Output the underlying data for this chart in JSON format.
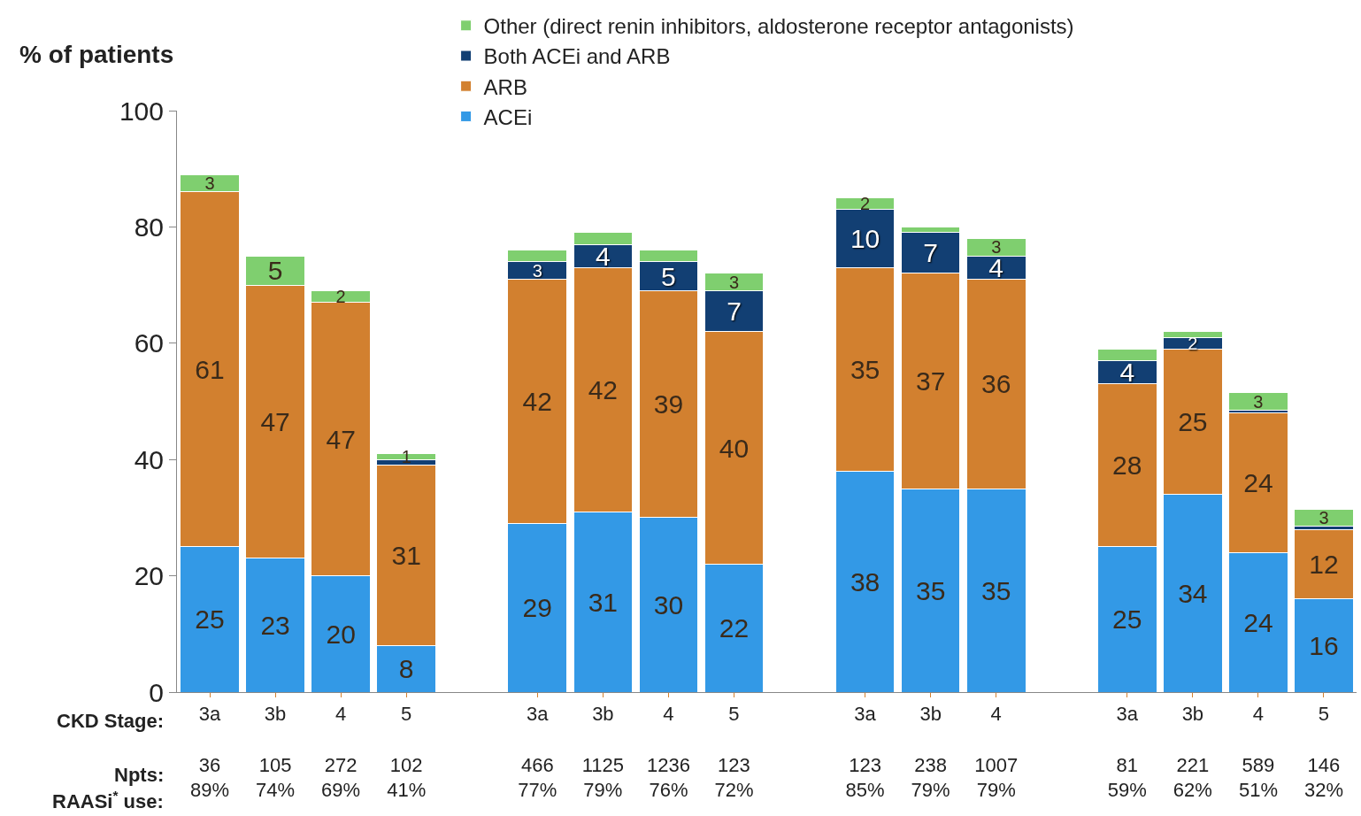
{
  "chart_data": {
    "type": "bar",
    "stacked": true,
    "ylabel": "% of patients",
    "ylim": [
      0,
      100
    ],
    "yticks": [
      0,
      20,
      40,
      60,
      80,
      100
    ],
    "legend": "top",
    "categories": [
      "3a\n\n36\n89%",
      "3b\n\n105\n74%",
      "4\n\n272\n69%",
      "5\n\n102\n41%",
      null,
      "3a\n\n466\n77%",
      "3b\n\n1125\n79%",
      "4\n\n1236\n76%",
      "5\n\n123\n72%",
      null,
      "3a\n\n123\n85%",
      "3b\n\n238\n79%",
      "4\n\n1007\n79%",
      null,
      "3a\n\n81\n59%",
      "3b\n\n221\n62%",
      "4\n\n589\n51%",
      "5\n\n146\n32%"
    ],
    "series": [
      {
        "name": "ACEi",
        "color": "#3399e6",
        "values": [
          25,
          23,
          20,
          8,
          null,
          29,
          31,
          30,
          22,
          null,
          38,
          35,
          35,
          null,
          25,
          34,
          24,
          16
        ],
        "value_labels": [
          "25",
          "23",
          "20",
          "8",
          null,
          "29",
          "31",
          "30",
          "22",
          null,
          "38",
          "35",
          "35",
          null,
          "25",
          "34",
          "24",
          "16"
        ]
      },
      {
        "name": "ARB",
        "color": "#d2802f",
        "values": [
          61,
          47,
          47,
          31,
          null,
          42,
          42,
          39,
          40,
          null,
          35,
          37,
          36,
          null,
          28,
          25,
          24,
          12
        ],
        "value_labels": [
          "61",
          "47",
          "47",
          "31",
          null,
          "42",
          "42",
          "39",
          "40",
          null,
          "35",
          "37",
          "36",
          null,
          "28",
          "25",
          "24",
          "12"
        ]
      },
      {
        "name": "Both ACEi and ARB",
        "color": "#123f73",
        "values": [
          0,
          0,
          0,
          1,
          null,
          3,
          4,
          5,
          7,
          null,
          10,
          7,
          4,
          null,
          4,
          2,
          0.5,
          0.5
        ],
        "value_labels": [
          null,
          null,
          null,
          null,
          null,
          "3",
          "4",
          "5",
          "7",
          null,
          "10",
          "7",
          "4",
          null,
          "4",
          "2",
          null,
          null
        ]
      },
      {
        "name": "Other (direct renin inhibitors, aldosterone receptor antagonists)",
        "color": "#7fcf6f",
        "values": [
          3,
          5,
          2,
          1,
          null,
          2,
          2,
          2,
          3,
          null,
          2,
          1,
          3,
          null,
          2,
          1,
          3,
          3
        ],
        "value_labels": [
          "3",
          "5",
          "2",
          "1",
          null,
          null,
          null,
          null,
          "3",
          null,
          "2",
          null,
          "3",
          null,
          null,
          null,
          "3",
          "3"
        ]
      }
    ],
    "annotations": [
      "CKD Stage:",
      "Npts:",
      "RAASi$^{*}$ use:"
    ]
  }
}
